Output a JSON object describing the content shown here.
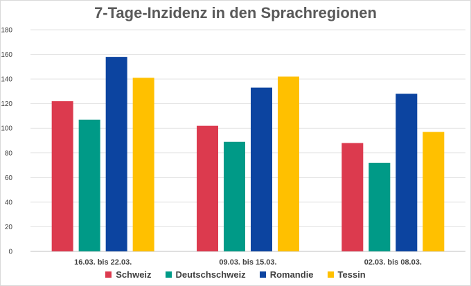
{
  "chart_data": {
    "type": "bar",
    "title": "7-Tage-Inzidenz in den Sprachregionen",
    "categories": [
      "16.03. bis 22.03.",
      "09.03. bis 15.03.",
      "02.03. bis 08.03."
    ],
    "series": [
      {
        "name": "Schweiz",
        "color": "#dc3a4e",
        "values": [
          122,
          102,
          88
        ]
      },
      {
        "name": "Deutschschweiz",
        "color": "#009a87",
        "values": [
          107,
          89,
          72
        ]
      },
      {
        "name": "Romandie",
        "color": "#0c44a0",
        "values": [
          158,
          133,
          128
        ]
      },
      {
        "name": "Tessin",
        "color": "#ffc000",
        "values": [
          141,
          142,
          97
        ]
      }
    ],
    "ylim": [
      0,
      180
    ],
    "yticks": [
      0,
      20,
      40,
      60,
      80,
      100,
      120,
      140,
      160,
      180
    ],
    "grid": true,
    "legend_position": "bottom"
  }
}
